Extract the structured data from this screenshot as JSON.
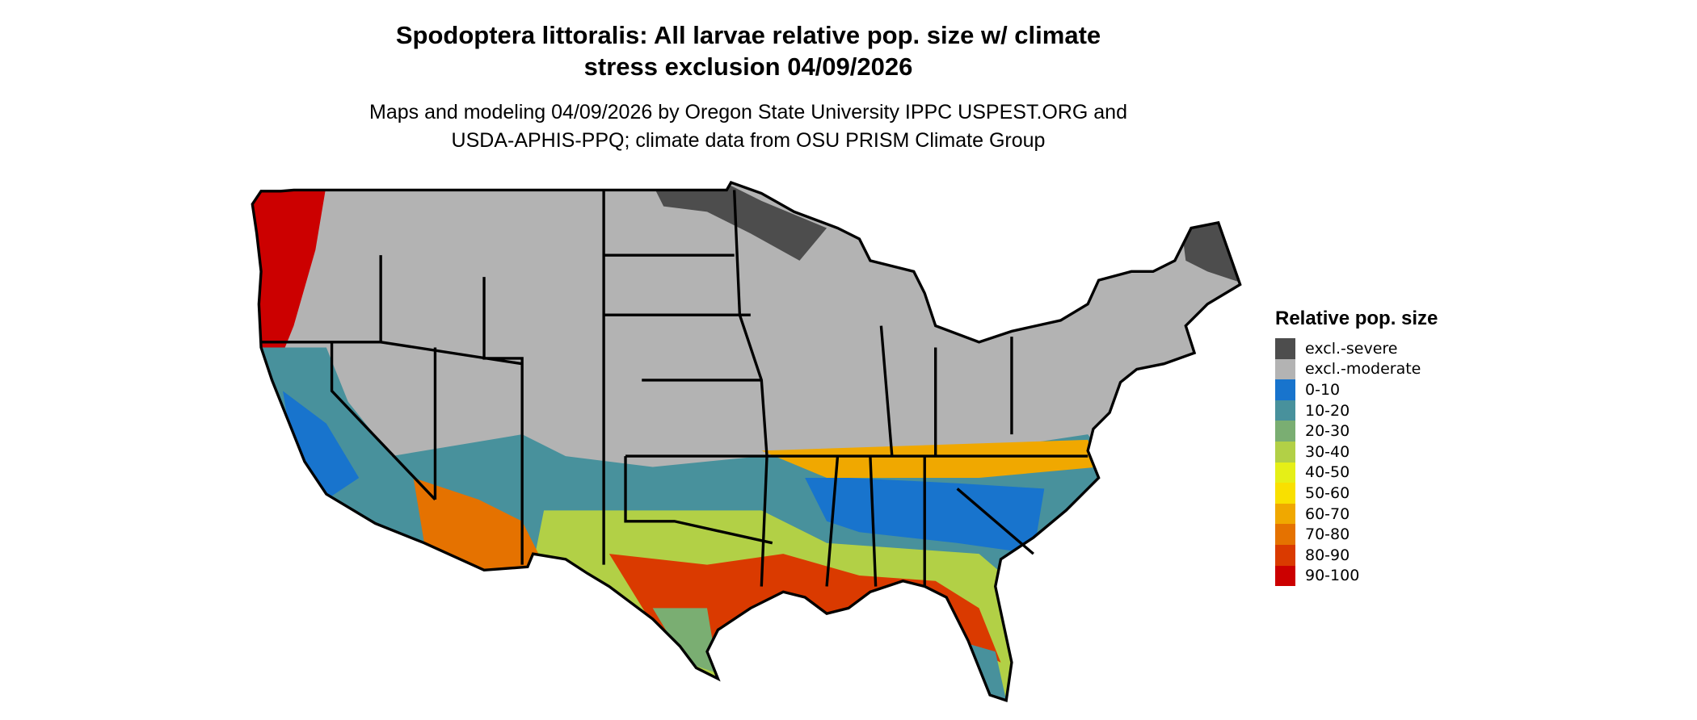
{
  "title_line1": "Spodoptera littoralis: All larvae relative pop. size w/ climate",
  "title_line2": "stress exclusion 04/09/2026",
  "subtitle_line1": "Maps and modeling 04/09/2026 by Oregon State University IPPC USPEST.ORG and",
  "subtitle_line2": "USDA-APHIS-PPQ; climate data from OSU PRISM Climate Group",
  "chart_data": {
    "type": "map",
    "region": "Contiguous United States",
    "legend_title": "Relative pop. size",
    "legend_placement": "right",
    "legend": [
      {
        "label": "excl.-severe",
        "color": "#4d4d4d"
      },
      {
        "label": "excl.-moderate",
        "color": "#b3b3b3"
      },
      {
        "label": "0-10",
        "color": "#1874cd"
      },
      {
        "label": "10-20",
        "color": "#48919c"
      },
      {
        "label": "20-30",
        "color": "#7aae72"
      },
      {
        "label": "30-40",
        "color": "#b2d046"
      },
      {
        "label": "40-50",
        "color": "#e5ef17"
      },
      {
        "label": "50-60",
        "color": "#f9e000"
      },
      {
        "label": "60-70",
        "color": "#f0a800"
      },
      {
        "label": "70-80",
        "color": "#e57200"
      },
      {
        "label": "80-90",
        "color": "#da3a00"
      },
      {
        "label": "90-100",
        "color": "#cc0000"
      }
    ]
  }
}
